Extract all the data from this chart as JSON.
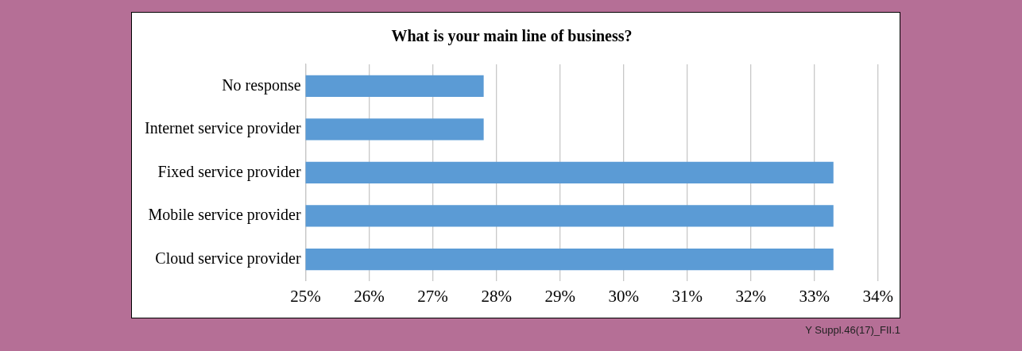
{
  "chart_data": {
    "type": "bar",
    "orientation": "horizontal",
    "title": "What is your main line of business?",
    "categories": [
      "No response",
      "Internet service provider",
      "Fixed service provider",
      "Mobile service provider",
      "Cloud service provider"
    ],
    "values": [
      27.8,
      27.8,
      33.3,
      33.3,
      33.3
    ],
    "color": "#5b9bd5",
    "xlim": [
      25,
      34
    ],
    "xticks": [
      {
        "value": 25,
        "label": "25%"
      },
      {
        "value": 26,
        "label": "26%"
      },
      {
        "value": 27,
        "label": "27%"
      },
      {
        "value": 28,
        "label": "28%"
      },
      {
        "value": 29,
        "label": "29%"
      },
      {
        "value": 30,
        "label": "30%"
      },
      {
        "value": 31,
        "label": "31%"
      },
      {
        "value": 32,
        "label": "32%"
      },
      {
        "value": 33,
        "label": "33%"
      },
      {
        "value": 34,
        "label": "34%"
      }
    ],
    "grid": "x",
    "legend": false,
    "annotations": [
      "Y Suppl.46(17)_FII.1"
    ]
  }
}
